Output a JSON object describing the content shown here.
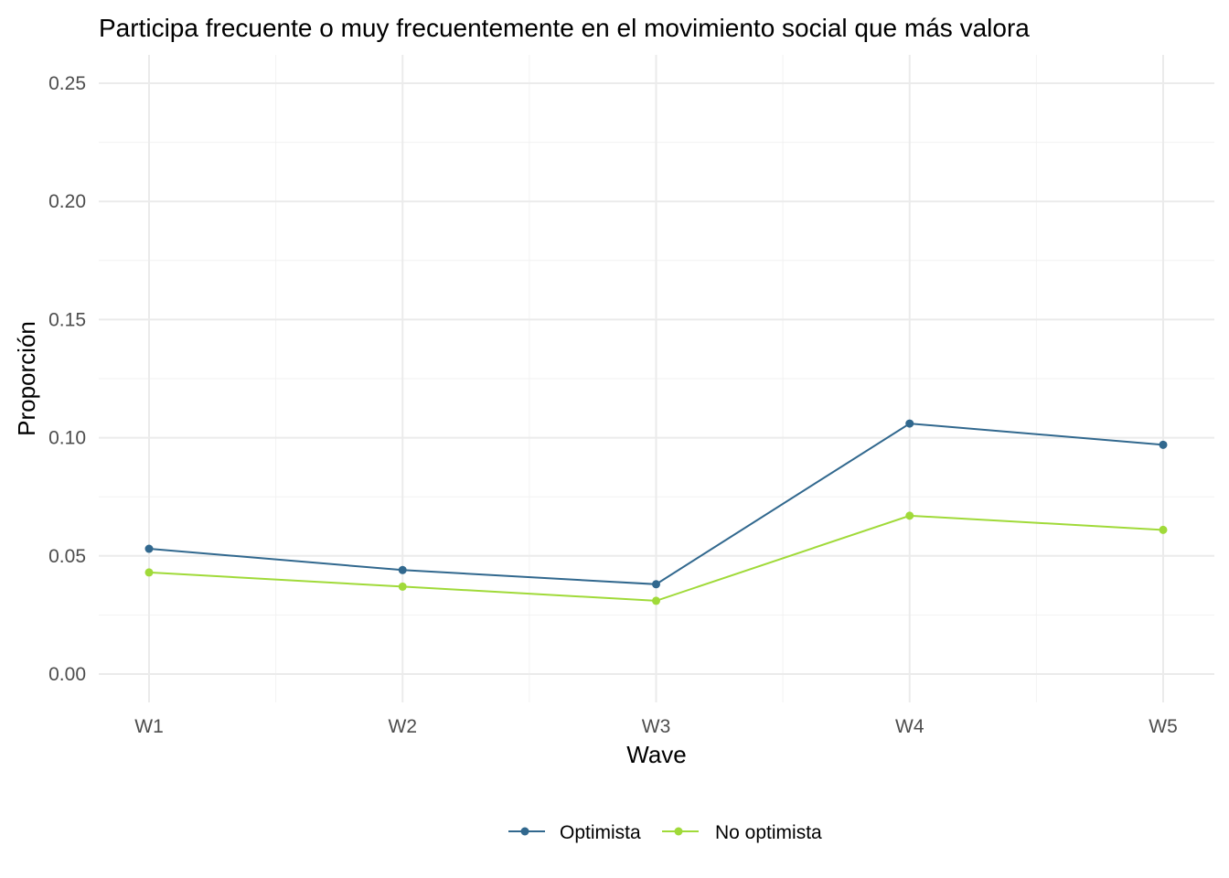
{
  "chart_data": {
    "type": "line",
    "title": "Participa frecuente o muy frecuentemente en el movimiento social que más valora",
    "xlabel": "Wave",
    "ylabel": "Proporción",
    "categories": [
      "W1",
      "W2",
      "W3",
      "W4",
      "W5"
    ],
    "ylim": [
      0,
      0.25
    ],
    "y_ticks": [
      "0.00",
      "0.05",
      "0.10",
      "0.15",
      "0.20",
      "0.25"
    ],
    "grid": true,
    "legend_position": "bottom",
    "series": [
      {
        "name": "Optimista",
        "color": "#31688e",
        "values": [
          0.053,
          0.044,
          0.038,
          0.106,
          0.097
        ]
      },
      {
        "name": "No optimista",
        "color": "#a0da39",
        "values": [
          0.043,
          0.037,
          0.031,
          0.067,
          0.061
        ]
      }
    ]
  }
}
